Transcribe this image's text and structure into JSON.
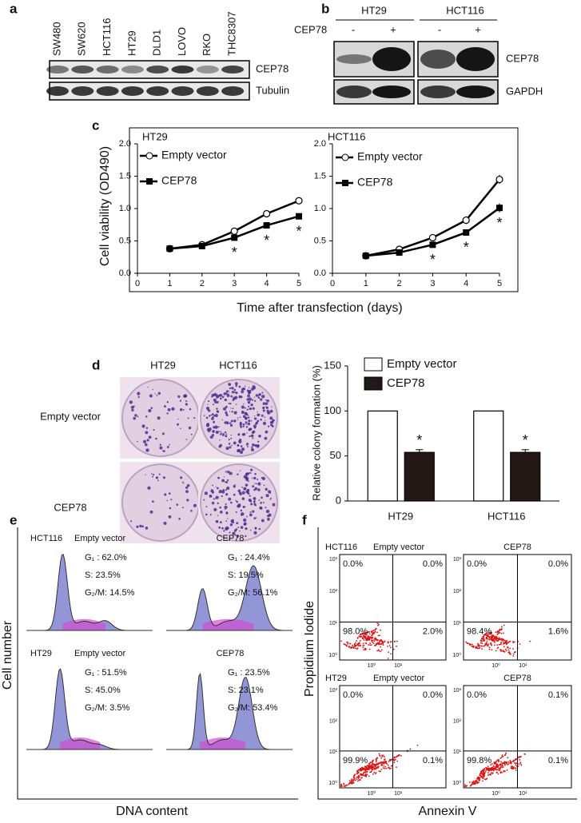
{
  "panel_labels": [
    "a",
    "b",
    "c",
    "d",
    "e",
    "f"
  ],
  "blot_a": {
    "cell_lines": [
      "SW480",
      "SW620",
      "HCT116",
      "HT29",
      "DLD1",
      "LOVO",
      "RKO",
      "THC8307"
    ],
    "bands": [
      "CEP78",
      "Tubulin"
    ]
  },
  "blot_b": {
    "groups": [
      "HT29",
      "HCT116"
    ],
    "row_label": "CEP78",
    "signs": [
      "-",
      "+",
      "-",
      "+"
    ],
    "bands": [
      "CEP78",
      "GAPDH"
    ]
  },
  "chart_data": [
    {
      "type": "line",
      "title": "HT29",
      "x": [
        1,
        2,
        3,
        4,
        5
      ],
      "xlim": [
        0,
        5
      ],
      "xticks": [
        0,
        1,
        2,
        3,
        4,
        5
      ],
      "ylim": [
        0,
        2
      ],
      "yticks": [
        {
          "value": 0,
          "label": "0.0"
        },
        {
          "value": 0.5,
          "label": "0.5"
        },
        {
          "value": 1,
          "label": "1.0"
        },
        {
          "value": 1.5,
          "label": "1.5"
        },
        {
          "value": 2,
          "label": "2.0"
        }
      ],
      "y_label": "Cell viability (OD490)",
      "x_label": "Time after transfection (days)",
      "series": [
        {
          "name": "Empty vector",
          "color": "#ffffff",
          "marker": "circle",
          "values": [
            0.38,
            0.44,
            0.65,
            0.92,
            1.12
          ],
          "errors": [
            0.02,
            0.02,
            0.02,
            0.02,
            0.05
          ]
        },
        {
          "name": "CEP78",
          "color": "#000000",
          "marker": "square",
          "values": [
            0.38,
            0.42,
            0.55,
            0.74,
            0.88
          ],
          "errors": [
            0.02,
            0.02,
            0.02,
            0.03,
            0.04
          ],
          "significance": [
            null,
            null,
            "*",
            "*",
            "*"
          ]
        }
      ]
    },
    {
      "type": "line",
      "title": "HCT116",
      "x": [
        1,
        2,
        3,
        4,
        5
      ],
      "xlim": [
        0,
        5
      ],
      "xticks": [
        0,
        1,
        2,
        3,
        4,
        5
      ],
      "ylim": [
        0,
        2
      ],
      "yticks": [
        {
          "value": 0,
          "label": "0.0"
        },
        {
          "value": 0.5,
          "label": "0.5"
        },
        {
          "value": 1,
          "label": "1.0"
        },
        {
          "value": 1.5,
          "label": "1.5"
        },
        {
          "value": 2,
          "label": "2.0"
        }
      ],
      "series": [
        {
          "name": "Empty vector",
          "color": "#ffffff",
          "marker": "circle",
          "values": [
            0.27,
            0.37,
            0.55,
            0.82,
            1.45
          ],
          "errors": [
            0.04,
            0.02,
            0.05,
            0.06,
            0.07
          ]
        },
        {
          "name": "CEP78",
          "color": "#000000",
          "marker": "square",
          "values": [
            0.27,
            0.32,
            0.44,
            0.63,
            1.01
          ],
          "errors": [
            0.04,
            0.02,
            0.03,
            0.03,
            0.07
          ],
          "significance": [
            null,
            null,
            "*",
            "*",
            "*"
          ]
        }
      ]
    },
    {
      "type": "bar",
      "categories": [
        "HT29",
        "HCT116"
      ],
      "ylim": [
        0,
        150
      ],
      "yticks": [
        0,
        50,
        100,
        150
      ],
      "y_label": "Relative colony formation (%)",
      "series": [
        {
          "name": "Empty vector",
          "color": "#ffffff",
          "values": [
            100,
            100
          ]
        },
        {
          "name": "CEP78",
          "color": "#231815",
          "values": [
            54,
            54
          ],
          "errors": [
            3,
            3
          ],
          "significance": [
            "*",
            "*"
          ]
        }
      ]
    }
  ],
  "colony_d": {
    "columns": [
      "HT29",
      "HCT116"
    ],
    "rows": [
      "Empty vector",
      "CEP78"
    ]
  },
  "cell_cycle_e": {
    "y_label": "Cell number",
    "x_label": "DNA content",
    "panels": [
      {
        "cell_line": "HCT116",
        "condition": "Empty vector",
        "stats": [
          "G₁ : 62.0%",
          "S: 23.5%",
          "G₂/M: 14.5%"
        ]
      },
      {
        "condition": "CEP78",
        "stats": [
          "G₁ : 24.4%",
          "S: 19.5%",
          "G₂/M: 56.1%"
        ]
      },
      {
        "cell_line": "HT29",
        "condition": "Empty vector",
        "stats": [
          "G₁ : 51.5%",
          "S: 45.0%",
          "G₂/M: 3.5%"
        ]
      },
      {
        "condition": "CEP78",
        "stats": [
          "G₁ : 23.5%",
          "S: 23.1%",
          "G₂/M: 53.4%"
        ]
      }
    ]
  },
  "apoptosis_f": {
    "y_label": "Propidium Iodide",
    "x_label": "Annexin V",
    "decades": [
      "10⁰",
      "10¹",
      "10²",
      "10³"
    ],
    "panels": [
      {
        "cell_line": "HCT116",
        "condition": "Empty vector",
        "quadrants": [
          "0.0%",
          "0.0%",
          "98.0%",
          "2.0%"
        ]
      },
      {
        "condition": "CEP78",
        "quadrants": [
          "0.0%",
          "0.0%",
          "98.4%",
          "1.6%"
        ]
      },
      {
        "cell_line": "HT29",
        "condition": "Empty vector",
        "quadrants": [
          "0.0%",
          "0.0%",
          "99.9%",
          "0.1%"
        ]
      },
      {
        "condition": "CEP78",
        "quadrants": [
          "0.0%",
          "0.1%",
          "99.8%",
          "0.1%"
        ]
      }
    ]
  }
}
